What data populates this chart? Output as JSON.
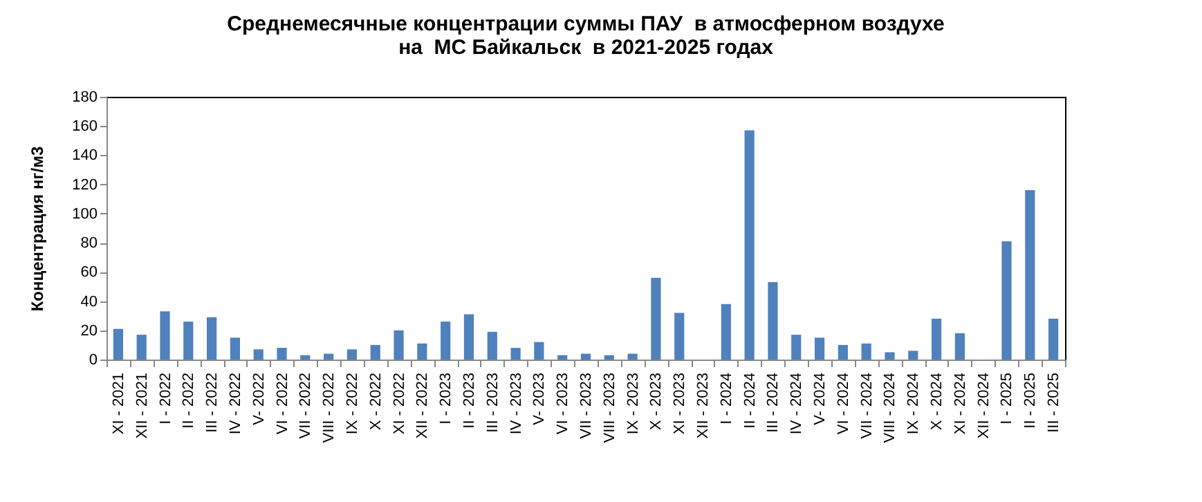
{
  "chart_data": {
    "type": "bar",
    "title": "Среднемесячные концентрации суммы ПАУ  в атмосферном воздухе\nна  МС Байкальск  в 2021-2025 годах",
    "ylabel": "Концентрация нг/м3",
    "categories": [
      "XI - 2021",
      "XII - 2021",
      "I - 2022",
      "II - 2022",
      "III - 2022",
      "IV - 2022",
      "V- 2022",
      "VI - 2022",
      "VII - 2022",
      "VIII - 2022",
      "IX - 2022",
      "X - 2022",
      "XI - 2022",
      "XII - 2022",
      "I - 2023",
      "II - 2023",
      "III - 2023",
      "IV - 2023",
      "V- 2023",
      "VI - 2023",
      "VII - 2023",
      "VIII - 2023",
      "IX - 2023",
      "X - 2023",
      "XI - 2023",
      "XII - 2023",
      "I - 2024",
      "II - 2024",
      "III - 2024",
      "IV - 2024",
      "V- 2024",
      "VI - 2024",
      "VII - 2024",
      "VIII - 2024",
      "IX - 2024",
      "X - 2024",
      "XI - 2024",
      "XII - 2024",
      "I - 2025",
      "II - 2025",
      "III - 2025"
    ],
    "values": [
      21,
      17,
      33,
      26,
      29,
      15,
      7,
      8,
      3,
      4,
      7,
      10,
      20,
      11,
      26,
      31,
      19,
      8,
      12,
      3,
      4,
      3,
      4,
      56,
      32,
      null,
      38,
      157,
      53,
      17,
      15,
      10,
      11,
      5,
      6,
      28,
      18,
      null,
      81,
      116,
      28
    ],
    "color": "#4f81bd",
    "ylim": [
      0,
      180
    ],
    "yticks": [
      0,
      20,
      40,
      60,
      80,
      100,
      120,
      140,
      160,
      180
    ],
    "grid": false
  }
}
